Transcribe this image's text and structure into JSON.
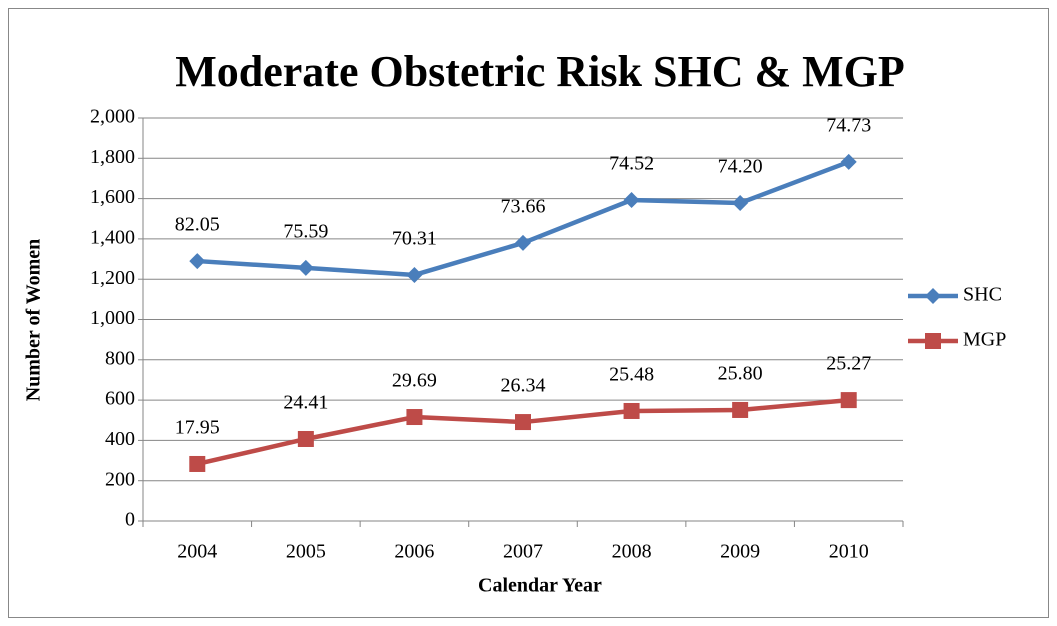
{
  "chart_data": {
    "type": "line",
    "title": "Moderate Obstetric Risk SHC & MGP",
    "x_label": "Calendar Year",
    "y_label": "Number of Women",
    "categories": [
      "2004",
      "2005",
      "2006",
      "2007",
      "2008",
      "2009",
      "2010"
    ],
    "series": [
      {
        "name": "SHC",
        "color": "#4a7ebb",
        "marker": "diamond",
        "values": [
          1290,
          1256,
          1221,
          1380,
          1593,
          1578,
          1782
        ],
        "point_labels": [
          "82.05",
          "75.59",
          "70.31",
          "73.66",
          "74.52",
          "74.20",
          "74.73"
        ]
      },
      {
        "name": "MGP",
        "color": "#be4b48",
        "marker": "square",
        "values": [
          283,
          407,
          516,
          491,
          546,
          551,
          600
        ],
        "point_labels": [
          "17.95",
          "24.41",
          "29.69",
          "26.34",
          "25.48",
          "25.80",
          "25.27"
        ]
      }
    ],
    "ylim": [
      0,
      2000
    ],
    "yticks": [
      0,
      200,
      400,
      600,
      800,
      {
        "value": 1000,
        "label": "1,000"
      },
      {
        "value": 1200,
        "label": "1,200"
      },
      {
        "value": 1400,
        "label": "1,400"
      },
      {
        "value": 1600,
        "label": "1,600"
      },
      {
        "value": 1800,
        "label": "1,800"
      },
      {
        "value": 2000,
        "label": "2,000"
      }
    ],
    "grid": true,
    "legend": "right"
  }
}
